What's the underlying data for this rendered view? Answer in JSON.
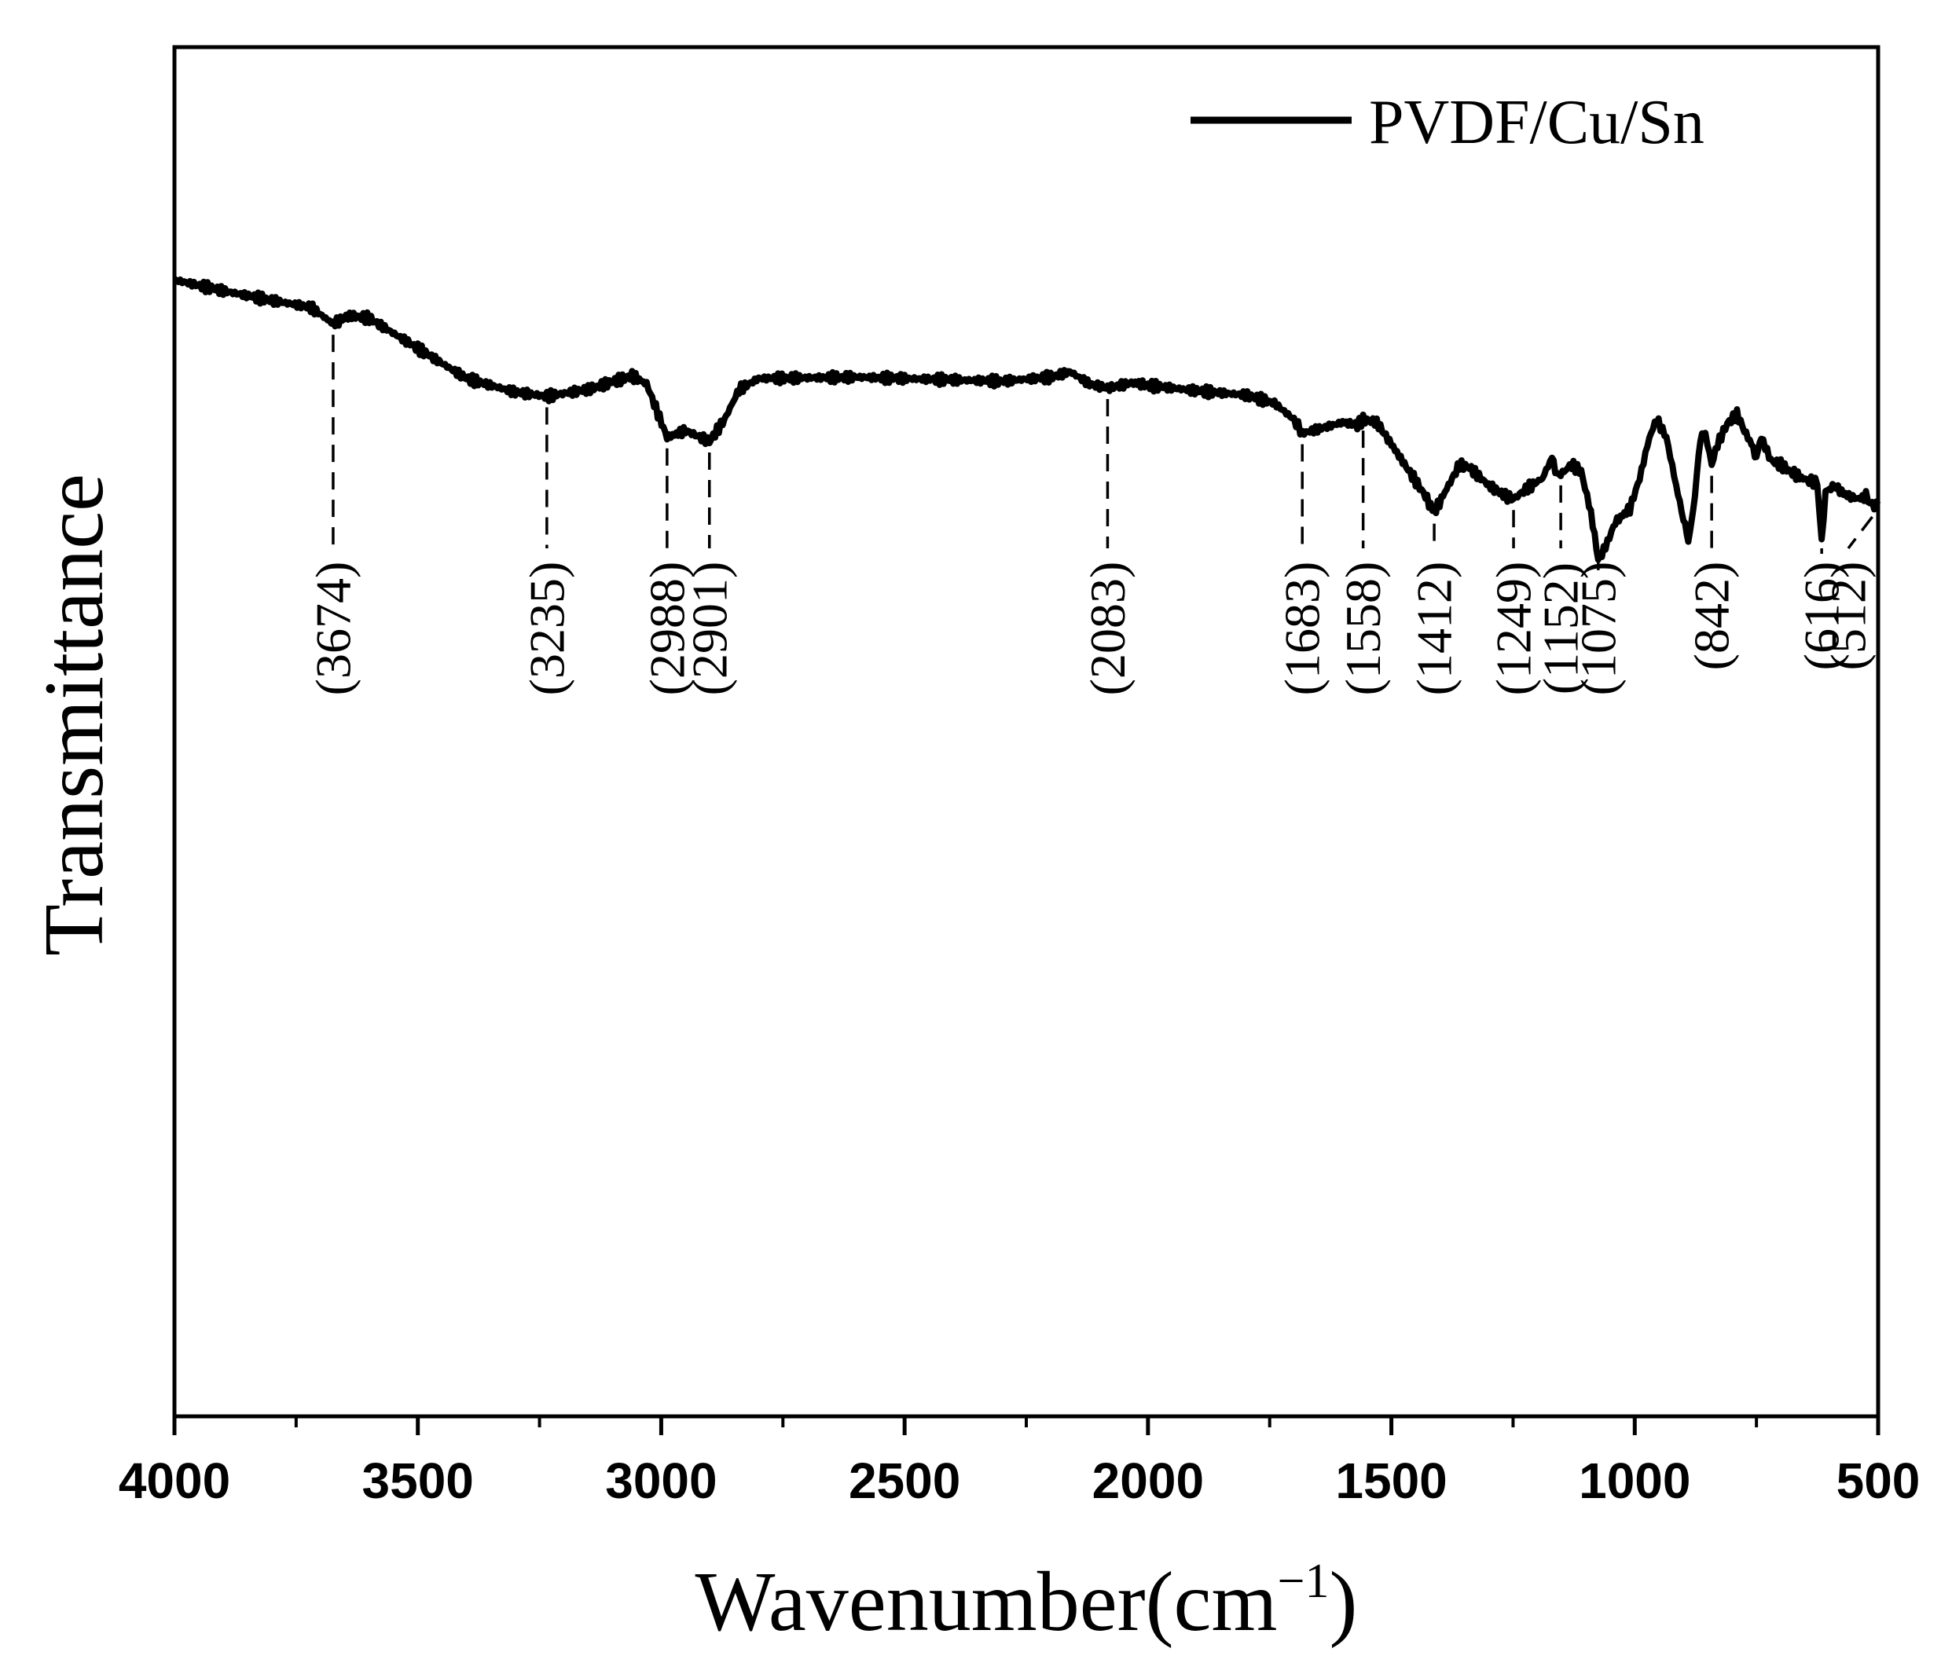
{
  "chart_data": {
    "type": "line",
    "title": "",
    "xlabel": "Wavenumber(cm",
    "xlabel_sup": "−1",
    "xlabel_close": ")",
    "ylabel": "Transmittance",
    "xlim": [
      4000,
      500
    ],
    "ylim": [
      0,
      100
    ],
    "x_reversed": true,
    "y_ticks_shown": false,
    "grid": false,
    "legend_position": "top-right",
    "x_ticks": [
      {
        "value": 4000,
        "label": "4000"
      },
      {
        "value": 3500,
        "label": "3500"
      },
      {
        "value": 3000,
        "label": "3000"
      },
      {
        "value": 2500,
        "label": "2500"
      },
      {
        "value": 2000,
        "label": "2000"
      },
      {
        "value": 1500,
        "label": "1500"
      },
      {
        "value": 1000,
        "label": "1000"
      },
      {
        "value": 500,
        "label": "500"
      }
    ],
    "x_minor_ticks": [
      3750,
      3250,
      2750,
      2250,
      1750,
      1250,
      750
    ],
    "series": [
      {
        "name": "PVDF/Cu/Sn",
        "color": "#000000",
        "points": [
          [
            4000,
            83
          ],
          [
            3900,
            82.2
          ],
          [
            3800,
            81.5
          ],
          [
            3720,
            81.0
          ],
          [
            3674,
            79.8
          ],
          [
            3640,
            80.4
          ],
          [
            3600,
            80.2
          ],
          [
            3500,
            78.0
          ],
          [
            3400,
            75.8
          ],
          [
            3300,
            74.8
          ],
          [
            3235,
            74.5
          ],
          [
            3150,
            75.0
          ],
          [
            3060,
            76.0
          ],
          [
            3030,
            75.4
          ],
          [
            2988,
            71.5
          ],
          [
            2950,
            72.0
          ],
          [
            2901,
            71.2
          ],
          [
            2870,
            72.8
          ],
          [
            2840,
            75.0
          ],
          [
            2800,
            75.8
          ],
          [
            2600,
            75.9
          ],
          [
            2400,
            75.7
          ],
          [
            2300,
            75.6
          ],
          [
            2200,
            75.9
          ],
          [
            2160,
            76.3
          ],
          [
            2120,
            75.4
          ],
          [
            2083,
            75.1
          ],
          [
            2030,
            75.5
          ],
          [
            2000,
            75.3
          ],
          [
            1900,
            74.9
          ],
          [
            1800,
            74.6
          ],
          [
            1740,
            74.0
          ],
          [
            1700,
            72.8
          ],
          [
            1683,
            71.8
          ],
          [
            1640,
            72.2
          ],
          [
            1600,
            72.6
          ],
          [
            1570,
            72.4
          ],
          [
            1558,
            72.8
          ],
          [
            1530,
            72.6
          ],
          [
            1500,
            71.0
          ],
          [
            1450,
            68.3
          ],
          [
            1430,
            67.2
          ],
          [
            1412,
            66.0
          ],
          [
            1390,
            67.5
          ],
          [
            1360,
            69.5
          ],
          [
            1340,
            69.3
          ],
          [
            1300,
            68.0
          ],
          [
            1270,
            67.3
          ],
          [
            1249,
            67.0
          ],
          [
            1220,
            67.8
          ],
          [
            1190,
            68.5
          ],
          [
            1170,
            70.0
          ],
          [
            1160,
            68.8
          ],
          [
            1152,
            68.8
          ],
          [
            1130,
            69.5
          ],
          [
            1110,
            69.0
          ],
          [
            1090,
            66.0
          ],
          [
            1075,
            62.6
          ],
          [
            1060,
            63.5
          ],
          [
            1040,
            65.3
          ],
          [
            1010,
            66.3
          ],
          [
            990,
            68.5
          ],
          [
            970,
            71.5
          ],
          [
            955,
            72.8
          ],
          [
            935,
            71.5
          ],
          [
            915,
            68.0
          ],
          [
            900,
            65.5
          ],
          [
            890,
            64.0
          ],
          [
            880,
            66.0
          ],
          [
            865,
            71.5
          ],
          [
            855,
            71.8
          ],
          [
            842,
            69.5
          ],
          [
            830,
            71.0
          ],
          [
            810,
            72.5
          ],
          [
            790,
            73.2
          ],
          [
            775,
            72.0
          ],
          [
            760,
            71.0
          ],
          [
            750,
            70.0
          ],
          [
            740,
            71.5
          ],
          [
            720,
            69.8
          ],
          [
            700,
            69.5
          ],
          [
            680,
            69.0
          ],
          [
            650,
            68.4
          ],
          [
            625,
            68.2
          ],
          [
            616,
            63.8
          ],
          [
            608,
            67.5
          ],
          [
            590,
            68.0
          ],
          [
            575,
            67.5
          ],
          [
            560,
            67.2
          ],
          [
            540,
            67.0
          ],
          [
            525,
            67.2
          ],
          [
            512,
            66.5
          ],
          [
            500,
            66.6
          ]
        ]
      }
    ],
    "legend": [
      {
        "label": "PVDF/Cu/Sn"
      }
    ],
    "annotations": [
      {
        "wavenumber": 3674,
        "label": "(3674)"
      },
      {
        "wavenumber": 3235,
        "label": "(3235)"
      },
      {
        "wavenumber": 2988,
        "label": "(2988)"
      },
      {
        "wavenumber": 2901,
        "label": "(2901)"
      },
      {
        "wavenumber": 2083,
        "label": "(2083)"
      },
      {
        "wavenumber": 1683,
        "label": "(1683)"
      },
      {
        "wavenumber": 1558,
        "label": "(1558)"
      },
      {
        "wavenumber": 1412,
        "label": "(1412)"
      },
      {
        "wavenumber": 1249,
        "label": "(1249)"
      },
      {
        "wavenumber": 1152,
        "label": "(1152)"
      },
      {
        "wavenumber": 1075,
        "label": "(1075)"
      },
      {
        "wavenumber": 842,
        "label": "(842)"
      },
      {
        "wavenumber": 616,
        "label": "(616)"
      },
      {
        "wavenumber": 512,
        "label": "(512)"
      }
    ]
  }
}
